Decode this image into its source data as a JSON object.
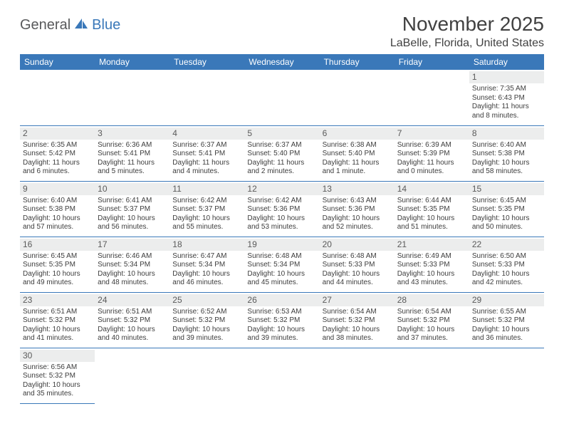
{
  "logo": {
    "text1": "General",
    "text2": "Blue"
  },
  "title": "November 2025",
  "location": "LaBelle, Florida, United States",
  "day_headers": [
    "Sunday",
    "Monday",
    "Tuesday",
    "Wednesday",
    "Thursday",
    "Friday",
    "Saturday"
  ],
  "colors": {
    "header_bg": "#3a78b9",
    "header_fg": "#ffffff",
    "daynum_bg": "#eceded",
    "cell_border": "#3a78b9",
    "text": "#3d3d3d",
    "title_color": "#414141"
  },
  "grid": [
    [
      null,
      null,
      null,
      null,
      null,
      null,
      {
        "day": "1",
        "sunrise": "Sunrise: 7:35 AM",
        "sunset": "Sunset: 6:43 PM",
        "daylight": "Daylight: 11 hours and 8 minutes."
      }
    ],
    [
      {
        "day": "2",
        "sunrise": "Sunrise: 6:35 AM",
        "sunset": "Sunset: 5:42 PM",
        "daylight": "Daylight: 11 hours and 6 minutes."
      },
      {
        "day": "3",
        "sunrise": "Sunrise: 6:36 AM",
        "sunset": "Sunset: 5:41 PM",
        "daylight": "Daylight: 11 hours and 5 minutes."
      },
      {
        "day": "4",
        "sunrise": "Sunrise: 6:37 AM",
        "sunset": "Sunset: 5:41 PM",
        "daylight": "Daylight: 11 hours and 4 minutes."
      },
      {
        "day": "5",
        "sunrise": "Sunrise: 6:37 AM",
        "sunset": "Sunset: 5:40 PM",
        "daylight": "Daylight: 11 hours and 2 minutes."
      },
      {
        "day": "6",
        "sunrise": "Sunrise: 6:38 AM",
        "sunset": "Sunset: 5:40 PM",
        "daylight": "Daylight: 11 hours and 1 minute."
      },
      {
        "day": "7",
        "sunrise": "Sunrise: 6:39 AM",
        "sunset": "Sunset: 5:39 PM",
        "daylight": "Daylight: 11 hours and 0 minutes."
      },
      {
        "day": "8",
        "sunrise": "Sunrise: 6:40 AM",
        "sunset": "Sunset: 5:38 PM",
        "daylight": "Daylight: 10 hours and 58 minutes."
      }
    ],
    [
      {
        "day": "9",
        "sunrise": "Sunrise: 6:40 AM",
        "sunset": "Sunset: 5:38 PM",
        "daylight": "Daylight: 10 hours and 57 minutes."
      },
      {
        "day": "10",
        "sunrise": "Sunrise: 6:41 AM",
        "sunset": "Sunset: 5:37 PM",
        "daylight": "Daylight: 10 hours and 56 minutes."
      },
      {
        "day": "11",
        "sunrise": "Sunrise: 6:42 AM",
        "sunset": "Sunset: 5:37 PM",
        "daylight": "Daylight: 10 hours and 55 minutes."
      },
      {
        "day": "12",
        "sunrise": "Sunrise: 6:42 AM",
        "sunset": "Sunset: 5:36 PM",
        "daylight": "Daylight: 10 hours and 53 minutes."
      },
      {
        "day": "13",
        "sunrise": "Sunrise: 6:43 AM",
        "sunset": "Sunset: 5:36 PM",
        "daylight": "Daylight: 10 hours and 52 minutes."
      },
      {
        "day": "14",
        "sunrise": "Sunrise: 6:44 AM",
        "sunset": "Sunset: 5:35 PM",
        "daylight": "Daylight: 10 hours and 51 minutes."
      },
      {
        "day": "15",
        "sunrise": "Sunrise: 6:45 AM",
        "sunset": "Sunset: 5:35 PM",
        "daylight": "Daylight: 10 hours and 50 minutes."
      }
    ],
    [
      {
        "day": "16",
        "sunrise": "Sunrise: 6:45 AM",
        "sunset": "Sunset: 5:35 PM",
        "daylight": "Daylight: 10 hours and 49 minutes."
      },
      {
        "day": "17",
        "sunrise": "Sunrise: 6:46 AM",
        "sunset": "Sunset: 5:34 PM",
        "daylight": "Daylight: 10 hours and 48 minutes."
      },
      {
        "day": "18",
        "sunrise": "Sunrise: 6:47 AM",
        "sunset": "Sunset: 5:34 PM",
        "daylight": "Daylight: 10 hours and 46 minutes."
      },
      {
        "day": "19",
        "sunrise": "Sunrise: 6:48 AM",
        "sunset": "Sunset: 5:34 PM",
        "daylight": "Daylight: 10 hours and 45 minutes."
      },
      {
        "day": "20",
        "sunrise": "Sunrise: 6:48 AM",
        "sunset": "Sunset: 5:33 PM",
        "daylight": "Daylight: 10 hours and 44 minutes."
      },
      {
        "day": "21",
        "sunrise": "Sunrise: 6:49 AM",
        "sunset": "Sunset: 5:33 PM",
        "daylight": "Daylight: 10 hours and 43 minutes."
      },
      {
        "day": "22",
        "sunrise": "Sunrise: 6:50 AM",
        "sunset": "Sunset: 5:33 PM",
        "daylight": "Daylight: 10 hours and 42 minutes."
      }
    ],
    [
      {
        "day": "23",
        "sunrise": "Sunrise: 6:51 AM",
        "sunset": "Sunset: 5:32 PM",
        "daylight": "Daylight: 10 hours and 41 minutes."
      },
      {
        "day": "24",
        "sunrise": "Sunrise: 6:51 AM",
        "sunset": "Sunset: 5:32 PM",
        "daylight": "Daylight: 10 hours and 40 minutes."
      },
      {
        "day": "25",
        "sunrise": "Sunrise: 6:52 AM",
        "sunset": "Sunset: 5:32 PM",
        "daylight": "Daylight: 10 hours and 39 minutes."
      },
      {
        "day": "26",
        "sunrise": "Sunrise: 6:53 AM",
        "sunset": "Sunset: 5:32 PM",
        "daylight": "Daylight: 10 hours and 39 minutes."
      },
      {
        "day": "27",
        "sunrise": "Sunrise: 6:54 AM",
        "sunset": "Sunset: 5:32 PM",
        "daylight": "Daylight: 10 hours and 38 minutes."
      },
      {
        "day": "28",
        "sunrise": "Sunrise: 6:54 AM",
        "sunset": "Sunset: 5:32 PM",
        "daylight": "Daylight: 10 hours and 37 minutes."
      },
      {
        "day": "29",
        "sunrise": "Sunrise: 6:55 AM",
        "sunset": "Sunset: 5:32 PM",
        "daylight": "Daylight: 10 hours and 36 minutes."
      }
    ],
    [
      {
        "day": "30",
        "sunrise": "Sunrise: 6:56 AM",
        "sunset": "Sunset: 5:32 PM",
        "daylight": "Daylight: 10 hours and 35 minutes."
      },
      null,
      null,
      null,
      null,
      null,
      null
    ]
  ]
}
